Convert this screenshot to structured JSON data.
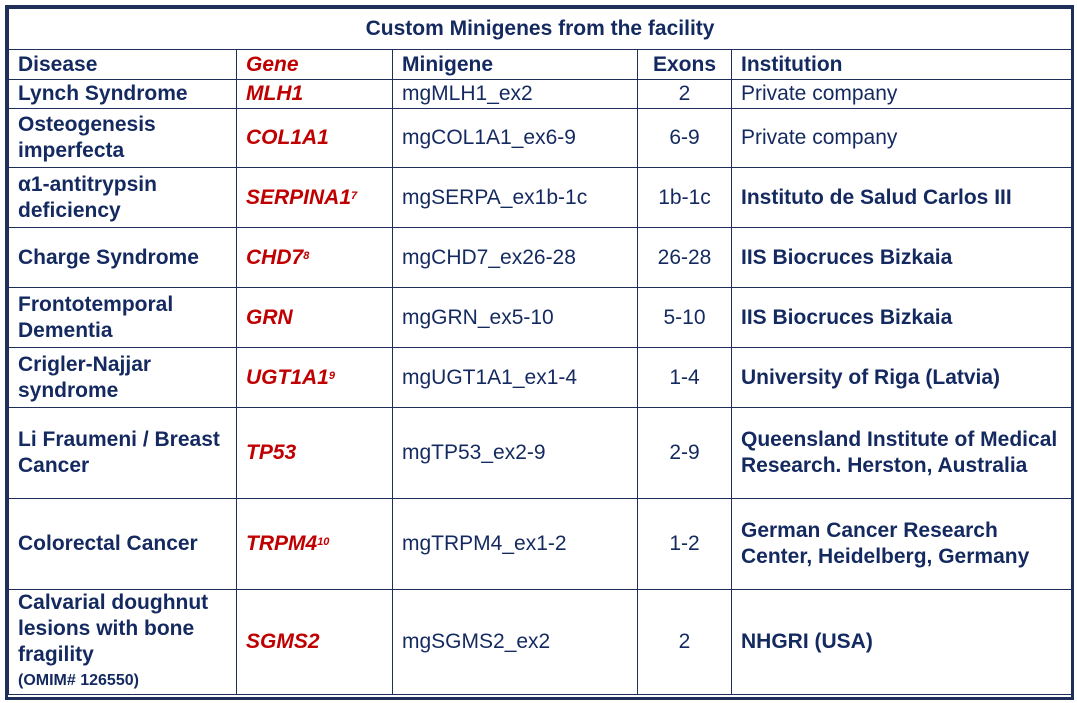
{
  "title": "Custom Minigenes from the facility",
  "headers": {
    "disease": "Disease",
    "gene": "Gene",
    "minigene": "Minigene",
    "exons": "Exons",
    "institution": "Institution"
  },
  "rows": [
    {
      "disease": "Lynch Syndrome",
      "gene": "MLH1",
      "ref": "",
      "minigene": "mgMLH1_ex2",
      "exons": "2",
      "institution": "Private company",
      "inst_bold": false
    },
    {
      "disease": "Osteogenesis imperfecta",
      "gene": "COL1A1",
      "ref": "",
      "minigene": "mgCOL1A1_ex6-9",
      "exons": "6-9",
      "institution": "Private company",
      "inst_bold": false
    },
    {
      "disease": "α1-antitrypsin deficiency",
      "gene": "SERPINA1",
      "ref": "7",
      "minigene": "mgSERPA_ex1b-1c",
      "exons": "1b-1c",
      "institution": "Instituto de Salud Carlos III",
      "inst_bold": true
    },
    {
      "disease": "Charge Syndrome",
      "gene": "CHD7",
      "ref": "8",
      "minigene": "mgCHD7_ex26-28",
      "exons": "26-28",
      "institution": "IIS Biocruces Bizkaia",
      "inst_bold": true
    },
    {
      "disease": "Frontotemporal Dementia",
      "gene": "GRN",
      "ref": "",
      "minigene": "mgGRN_ex5-10",
      "exons": "5-10",
      "institution": "IIS Biocruces Bizkaia",
      "inst_bold": true
    },
    {
      "disease": "Crigler-Najjar syndrome",
      "gene": "UGT1A1",
      "ref": "9",
      "minigene": "mgUGT1A1_ex1-4",
      "exons": "1-4",
      "institution": "University of Riga (Latvia)",
      "inst_bold": true
    },
    {
      "disease": "Li Fraumeni / Breast Cancer",
      "gene": "TP53",
      "ref": "",
      "minigene": "mgTP53_ex2-9",
      "exons": "2-9",
      "institution": "Queensland Institute of Medical Research. Herston, Australia",
      "inst_bold": true
    },
    {
      "disease": "Colorectal Cancer",
      "gene": "TRPM4",
      "ref": "10",
      "minigene": "mgTRPM4_ex1-2",
      "exons": "1-2",
      "institution": "German Cancer Research Center, Heidelberg, Germany",
      "inst_bold": true
    },
    {
      "disease": "Calvarial doughnut lesions with bone fragility",
      "disease_note": "(OMIM# 126550)",
      "gene": "SGMS2",
      "ref": "",
      "minigene": "mgSGMS2_ex2",
      "exons": "2",
      "institution": "NHGRI (USA)",
      "inst_bold": true
    }
  ]
}
